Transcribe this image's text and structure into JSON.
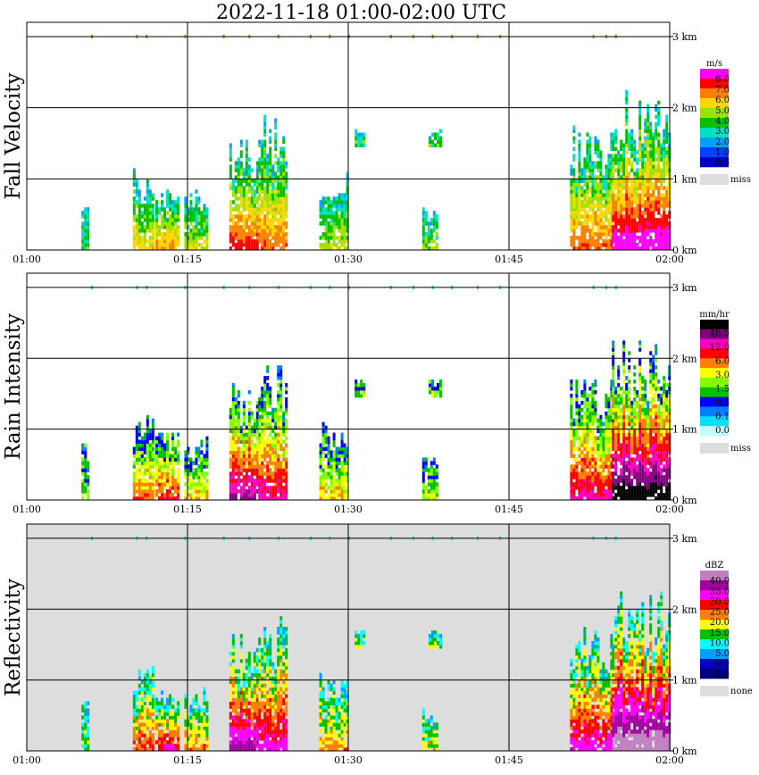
{
  "title": "2022-11-18   01:00-02:00 UTC",
  "chart_data": [
    {
      "type": "heatmap",
      "ylabel": "Fall Velocity",
      "x_ticks": [
        "01:00",
        "01:15",
        "01:30",
        "01:45",
        "02:00"
      ],
      "y_ticks": [
        "0 km",
        "1 km",
        "2 km",
        "3 km"
      ],
      "ylim_km": [
        0,
        3
      ],
      "background": "#ffffff",
      "colorbar": {
        "unit": "m/s",
        "labels": [
          "8.0",
          "7.0",
          "6.0",
          "5.0",
          "4.0",
          "3.0",
          "2.0",
          "1.0",
          "0.0"
        ],
        "colors": [
          "#ff00ff",
          "#ff0000",
          "#ff8000",
          "#ffd700",
          "#a0e000",
          "#00c000",
          "#00e0c0",
          "#00a0ff",
          "#0040ff",
          "#0000c0"
        ],
        "extra_label": "miss",
        "extra_color": "#dddddd"
      }
    },
    {
      "type": "heatmap",
      "ylabel": "Rain Intensity",
      "x_ticks": [
        "01:00",
        "01:15",
        "01:30",
        "01:45",
        "02:00"
      ],
      "y_ticks": [
        "0 km",
        "1 km",
        "2 km",
        "3 km"
      ],
      "ylim_km": [
        0,
        3
      ],
      "background": "#ffffff",
      "colorbar": {
        "unit": "mm/hr",
        "labels": [
          "48.0",
          "12.0",
          "6.0",
          "3.0",
          "1.5",
          "0.5",
          "0.1",
          "0.0"
        ],
        "colors": [
          "#000000",
          "#800080",
          "#ff00c0",
          "#ff0000",
          "#ff8000",
          "#ffff00",
          "#80ff00",
          "#00c000",
          "#0000ff",
          "#0080ff",
          "#00e0ff",
          "#c0ffff"
        ],
        "extra_label": "miss",
        "extra_color": "#dddddd"
      }
    },
    {
      "type": "heatmap",
      "ylabel": "Reflectivity",
      "x_ticks": [
        "01:00",
        "01:15",
        "01:30",
        "01:45",
        "02:00"
      ],
      "y_ticks": [
        "0 km",
        "1 km",
        "2 km",
        "3 km"
      ],
      "ylim_km": [
        0,
        3
      ],
      "background": "#dddddd",
      "colorbar": {
        "unit": "dBZ",
        "labels": [
          "40.0",
          "35.0",
          "30.0",
          "25.0",
          "20.0",
          "15.0",
          "10.0",
          "5.0",
          "0.0",
          "-5.0"
        ],
        "colors": [
          "#c080c0",
          "#a000a0",
          "#ff00ff",
          "#ff0000",
          "#ff8000",
          "#ffff00",
          "#00c000",
          "#00ffff",
          "#00a0ff",
          "#0000c0",
          "#000080"
        ],
        "extra_label": "none",
        "extra_color": "#dddddd"
      }
    }
  ]
}
